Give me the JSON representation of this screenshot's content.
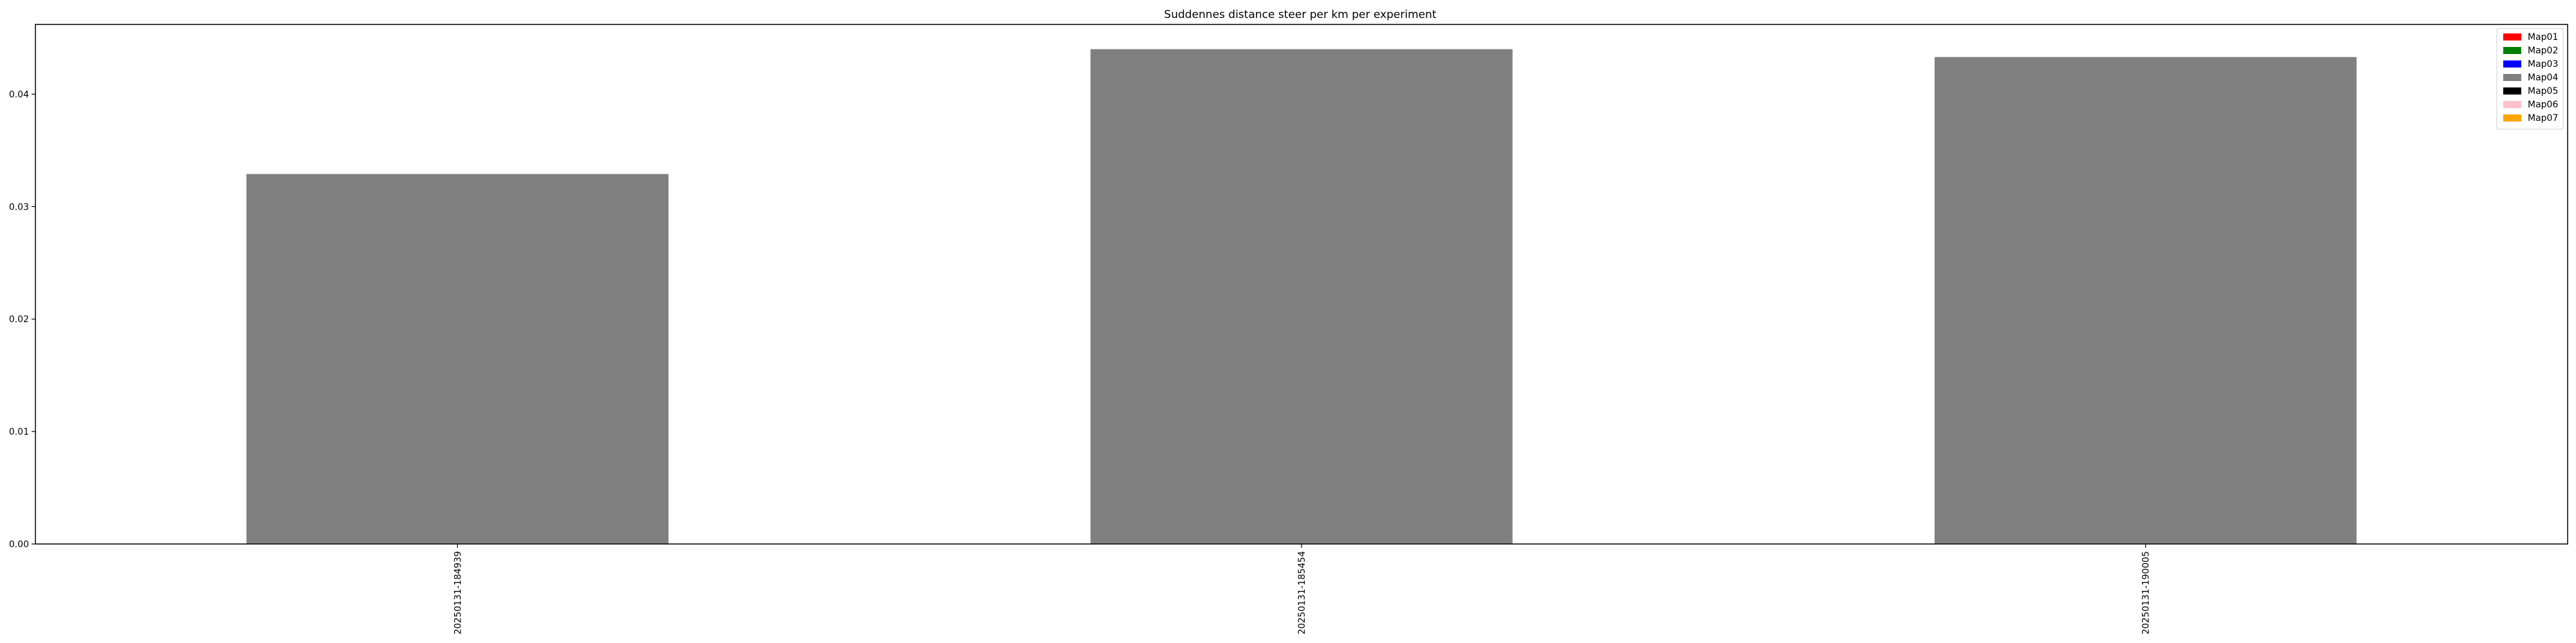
{
  "chart_data": {
    "type": "bar",
    "title": "Suddennes distance steer per km per experiment",
    "xlabel": "",
    "ylabel": "",
    "categories": [
      "20250131-184939",
      "20250131-185454",
      "20250131-190005"
    ],
    "values": [
      0.0329,
      0.044,
      0.0433
    ],
    "bar_color": "#808080",
    "ylim": [
      0,
      0.0462
    ],
    "yticks": [
      "0.00",
      "0.01",
      "0.02",
      "0.03",
      "0.04"
    ],
    "grid": false,
    "legend": {
      "placement": "top-right",
      "entries": [
        {
          "label": "Map01",
          "color": "#ff0000"
        },
        {
          "label": "Map02",
          "color": "#008000"
        },
        {
          "label": "Map03",
          "color": "#0000ff"
        },
        {
          "label": "Map04",
          "color": "#808080"
        },
        {
          "label": "Map05",
          "color": "#000000"
        },
        {
          "label": "Map06",
          "color": "#ffc0cb"
        },
        {
          "label": "Map07",
          "color": "#ffa500"
        }
      ]
    }
  }
}
